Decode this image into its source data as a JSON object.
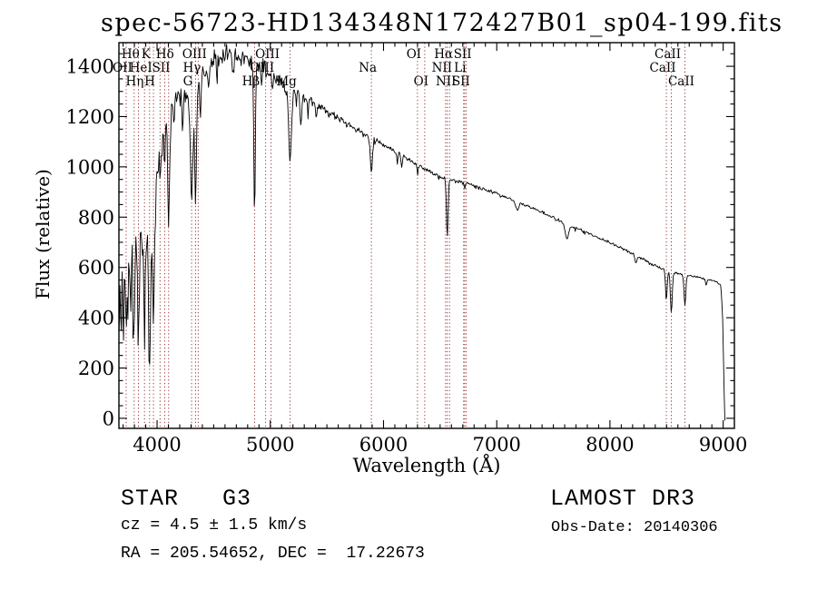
{
  "title": "spec-56723-HD134348N172427B01_sp04-199.fits",
  "annotations": {
    "class_label": "STAR   G3",
    "cz": "cz = 4.5 ± 1.5 km/s",
    "radec": "RA = 205.54652, DEC =  17.22673",
    "survey": "LAMOST DR3",
    "obs_date": "Obs-Date: 20140306"
  },
  "chart_data": {
    "type": "line",
    "title": "spec-56723-HD134348N172427B01_sp04-199.fits",
    "xlabel": "Wavelength (Å)",
    "ylabel": "Flux (relative)",
    "xlim": [
      3663,
      9099
    ],
    "ylim": [
      -40,
      1494
    ],
    "x_ticks": [
      4000,
      5000,
      6000,
      7000,
      8000,
      9000
    ],
    "y_ticks": [
      0,
      200,
      400,
      600,
      800,
      1000,
      1200,
      1400
    ],
    "x_minor_step": 100,
    "y_minor_step": 50,
    "grid": false,
    "legend": false,
    "line_color": "#000000",
    "marker_line_color": "#8f2a2a",
    "spectral_lines": [
      {
        "label": "Hθ",
        "wavelength": 3798,
        "row": 0
      },
      {
        "label": "K",
        "wavelength": 3934,
        "row": 0
      },
      {
        "label": "Hδ",
        "wavelength": 4102,
        "row": 0
      },
      {
        "label": "OIII",
        "wavelength": 4363,
        "row": 0
      },
      {
        "label": "OIII",
        "wavelength": 5007,
        "row": 0
      },
      {
        "label": "OI",
        "wavelength": 6300,
        "row": 0
      },
      {
        "label": "Hα",
        "wavelength": 6563,
        "row": 0
      },
      {
        "label": "SII",
        "wavelength": 6731,
        "row": 0
      },
      {
        "label": "CaII",
        "wavelength": 8542,
        "row": 0
      },
      {
        "label": "OII",
        "wavelength": 3727,
        "row": 1
      },
      {
        "label": "HeI",
        "wavelength": 3889,
        "row": 1
      },
      {
        "label": "SII",
        "wavelength": 4068,
        "row": 1
      },
      {
        "label": "Hγ",
        "wavelength": 4340,
        "row": 1
      },
      {
        "label": "OIII",
        "wavelength": 4959,
        "row": 1
      },
      {
        "label": "Na",
        "wavelength": 5893,
        "row": 1
      },
      {
        "label": "NII",
        "wavelength": 6548,
        "row": 1
      },
      {
        "label": "Li",
        "wavelength": 6708,
        "row": 1
      },
      {
        "label": "CaII",
        "wavelength": 8498,
        "row": 1
      },
      {
        "label": "Hη",
        "wavelength": 3835,
        "row": 2
      },
      {
        "label": "H",
        "wavelength": 3968,
        "row": 2
      },
      {
        "label": "G",
        "wavelength": 4305,
        "row": 2
      },
      {
        "label": "Hβ",
        "wavelength": 4861,
        "row": 2
      },
      {
        "label": "Mg",
        "wavelength": 5175,
        "row": 2
      },
      {
        "label": "OI",
        "wavelength": 6364,
        "row": 2
      },
      {
        "label": "NII",
        "wavelength": 6583,
        "row": 2
      },
      {
        "label": "SII",
        "wavelength": 6717,
        "row": 2
      },
      {
        "label": "CaII",
        "wavelength": 8662,
        "row": 2
      }
    ],
    "extra_marker_lines": [
      4026
    ],
    "continuum": [
      [
        3663,
        120
      ],
      [
        3668,
        470
      ],
      [
        3674,
        350
      ],
      [
        3684,
        470
      ],
      [
        3700,
        500
      ],
      [
        3720,
        530
      ],
      [
        3745,
        555
      ],
      [
        3770,
        600
      ],
      [
        3800,
        650
      ],
      [
        3830,
        675
      ],
      [
        3860,
        700
      ],
      [
        3890,
        730
      ],
      [
        3920,
        755
      ],
      [
        3950,
        800
      ],
      [
        3980,
        905
      ],
      [
        4005,
        1015
      ],
      [
        4035,
        1105
      ],
      [
        4065,
        1135
      ],
      [
        4100,
        1175
      ],
      [
        4140,
        1245
      ],
      [
        4180,
        1265
      ],
      [
        4220,
        1275
      ],
      [
        4260,
        1275
      ],
      [
        4300,
        1255
      ],
      [
        4350,
        1315
      ],
      [
        4400,
        1375
      ],
      [
        4450,
        1405
      ],
      [
        4500,
        1425
      ],
      [
        4560,
        1438
      ],
      [
        4630,
        1447
      ],
      [
        4700,
        1442
      ],
      [
        4780,
        1432
      ],
      [
        4860,
        1422
      ],
      [
        4940,
        1392
      ],
      [
        5000,
        1372
      ],
      [
        5080,
        1342
      ],
      [
        5160,
        1295
      ],
      [
        5240,
        1292
      ],
      [
        5330,
        1272
      ],
      [
        5430,
        1242
      ],
      [
        5530,
        1212
      ],
      [
        5630,
        1182
      ],
      [
        5730,
        1157
      ],
      [
        5830,
        1132
      ],
      [
        5900,
        1117
      ],
      [
        6000,
        1087
      ],
      [
        6100,
        1062
      ],
      [
        6200,
        1037
      ],
      [
        6300,
        1007
      ],
      [
        6400,
        982
      ],
      [
        6500,
        960
      ],
      [
        6570,
        950
      ],
      [
        6650,
        944
      ],
      [
        6750,
        932
      ],
      [
        6850,
        916
      ],
      [
        6950,
        902
      ],
      [
        7050,
        884
      ],
      [
        7150,
        866
      ],
      [
        7250,
        848
      ],
      [
        7350,
        830
      ],
      [
        7450,
        810
      ],
      [
        7550,
        786
      ],
      [
        7650,
        765
      ],
      [
        7750,
        748
      ],
      [
        7850,
        728
      ],
      [
        7950,
        708
      ],
      [
        8050,
        688
      ],
      [
        8150,
        665
      ],
      [
        8250,
        642
      ],
      [
        8350,
        618
      ],
      [
        8450,
        597
      ],
      [
        8530,
        583
      ],
      [
        8600,
        577
      ],
      [
        8700,
        568
      ],
      [
        8780,
        560
      ],
      [
        8860,
        552
      ],
      [
        8930,
        545
      ],
      [
        8980,
        528
      ],
      [
        8995,
        405
      ],
      [
        9005,
        185
      ],
      [
        9012,
        30
      ],
      [
        9016,
        -25
      ]
    ],
    "absorption_lines": [
      [
        3727,
        140,
        6
      ],
      [
        3770,
        120,
        5
      ],
      [
        3798,
        300,
        7
      ],
      [
        3835,
        340,
        7
      ],
      [
        3889,
        360,
        7
      ],
      [
        3934,
        530,
        9
      ],
      [
        3969,
        430,
        9
      ],
      [
        4026,
        130,
        5
      ],
      [
        4068,
        90,
        5
      ],
      [
        4102,
        400,
        8
      ],
      [
        4144,
        90,
        5
      ],
      [
        4226,
        140,
        5
      ],
      [
        4305,
        370,
        11
      ],
      [
        4340,
        430,
        8
      ],
      [
        4383,
        160,
        5
      ],
      [
        4455,
        90,
        5
      ],
      [
        4531,
        80,
        5
      ],
      [
        4668,
        90,
        5
      ],
      [
        4861,
        600,
        7
      ],
      [
        4921,
        90,
        5
      ],
      [
        5015,
        70,
        5
      ],
      [
        5175,
        265,
        11
      ],
      [
        5270,
        130,
        7
      ],
      [
        5332,
        70,
        5
      ],
      [
        5406,
        70,
        5
      ],
      [
        5893,
        140,
        9
      ],
      [
        6122,
        50,
        5
      ],
      [
        6162,
        50,
        5
      ],
      [
        6300,
        40,
        4
      ],
      [
        6563,
        235,
        7
      ],
      [
        6717,
        25,
        4
      ],
      [
        7180,
        35,
        12
      ],
      [
        7620,
        55,
        16
      ],
      [
        8230,
        30,
        8
      ],
      [
        8498,
        120,
        7
      ],
      [
        8542,
        165,
        8
      ],
      [
        8662,
        120,
        8
      ],
      [
        8850,
        25,
        6
      ]
    ],
    "noise_profile": [
      [
        3663,
        210
      ],
      [
        3750,
        185
      ],
      [
        3850,
        160
      ],
      [
        3950,
        120
      ],
      [
        4000,
        80
      ],
      [
        4150,
        70
      ],
      [
        4300,
        60
      ],
      [
        4450,
        48
      ],
      [
        4700,
        45
      ],
      [
        5000,
        42
      ],
      [
        5200,
        30
      ],
      [
        5400,
        22
      ],
      [
        5700,
        18
      ],
      [
        6000,
        13
      ],
      [
        6300,
        11
      ],
      [
        6600,
        9
      ],
      [
        7000,
        8
      ],
      [
        7600,
        8
      ],
      [
        8000,
        7
      ],
      [
        8600,
        7
      ],
      [
        8980,
        5
      ],
      [
        9016,
        4
      ]
    ]
  }
}
